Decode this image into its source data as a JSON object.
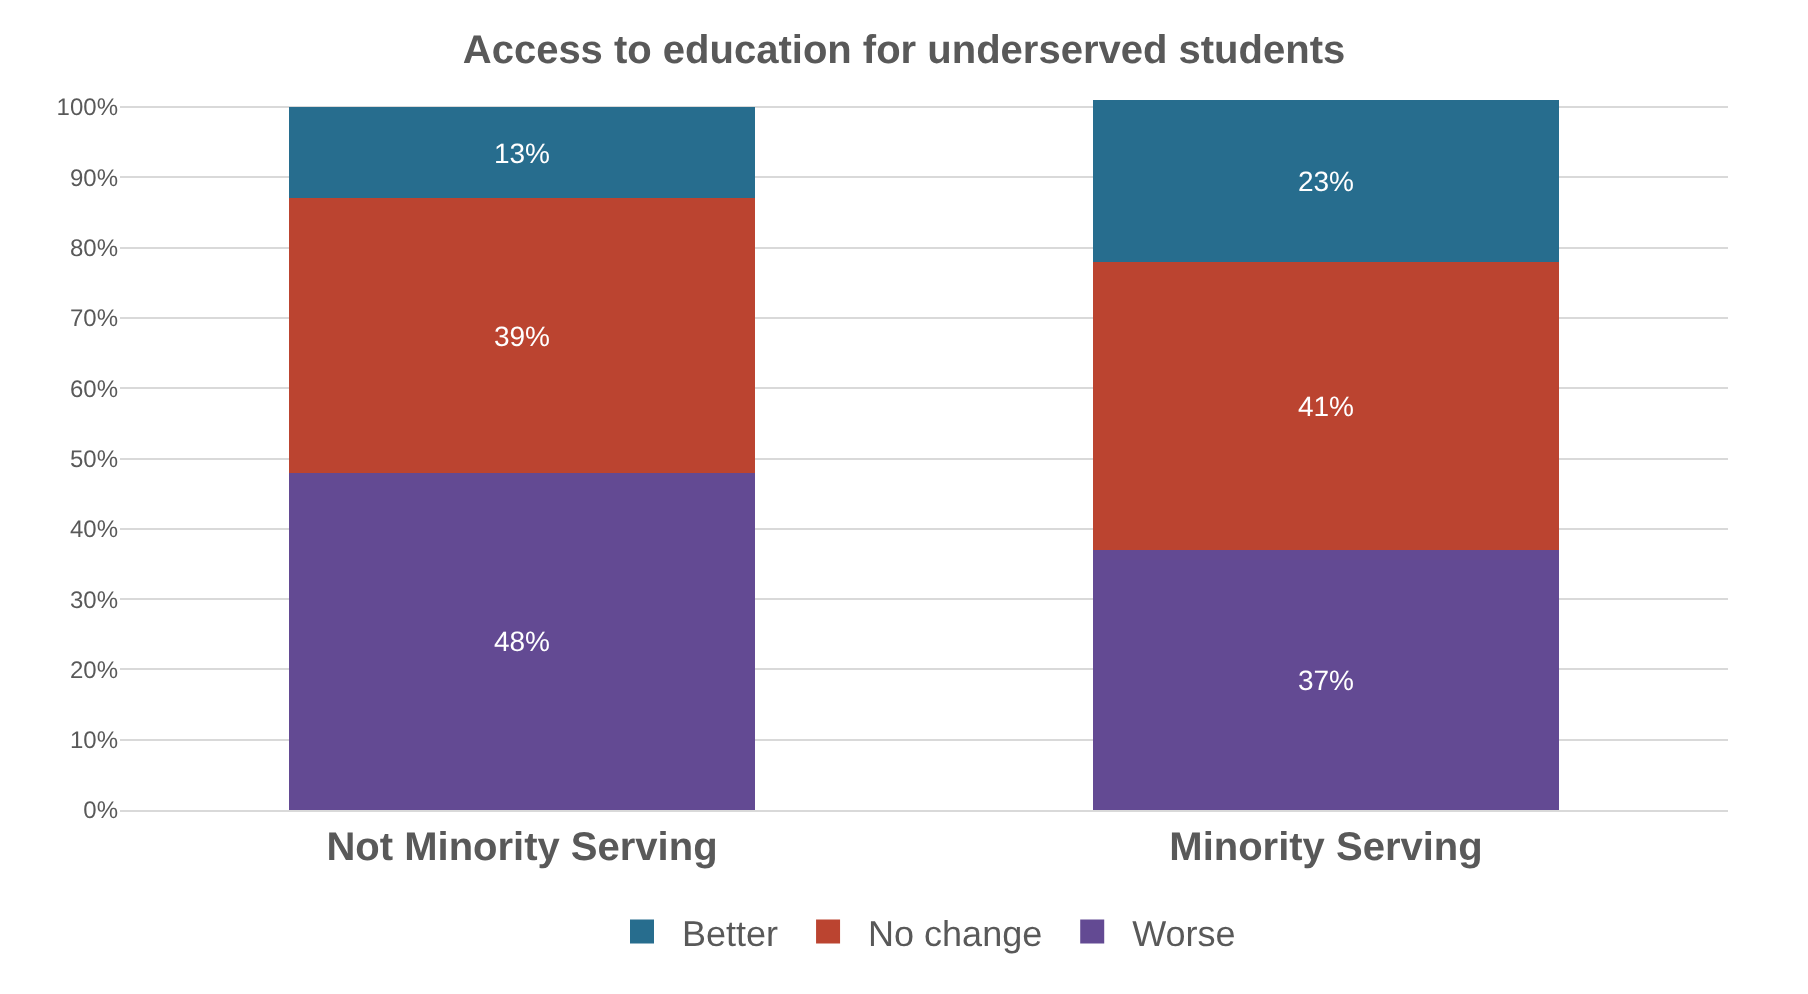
{
  "chart_data": {
    "type": "bar",
    "title": "Access to education for underserved students",
    "stacked": true,
    "categories": [
      "Not Minority Serving",
      "Minority Serving"
    ],
    "series": [
      {
        "name": "Worse",
        "color": "#634a93",
        "values": [
          48,
          37
        ],
        "value_labels": [
          "48%",
          "37%"
        ]
      },
      {
        "name": "No change",
        "color": "#bb4430",
        "values": [
          39,
          41
        ],
        "value_labels": [
          "39%",
          "41%"
        ]
      },
      {
        "name": "Better",
        "color": "#276d8e",
        "values": [
          13,
          23
        ],
        "value_labels": [
          "13%",
          "23%"
        ]
      }
    ],
    "ylim": [
      0,
      101
    ],
    "yticks": [
      {
        "value": 0,
        "label": "0%"
      },
      {
        "value": 10,
        "label": "10%"
      },
      {
        "value": 20,
        "label": "20%"
      },
      {
        "value": 30,
        "label": "30%"
      },
      {
        "value": 40,
        "label": "40%"
      },
      {
        "value": 50,
        "label": "50%"
      },
      {
        "value": 60,
        "label": "60%"
      },
      {
        "value": 70,
        "label": "70%"
      },
      {
        "value": 80,
        "label": "80%"
      },
      {
        "value": 90,
        "label": "90%"
      },
      {
        "value": 100,
        "label": "100%"
      }
    ],
    "grid": "y",
    "legend": "bottom"
  }
}
